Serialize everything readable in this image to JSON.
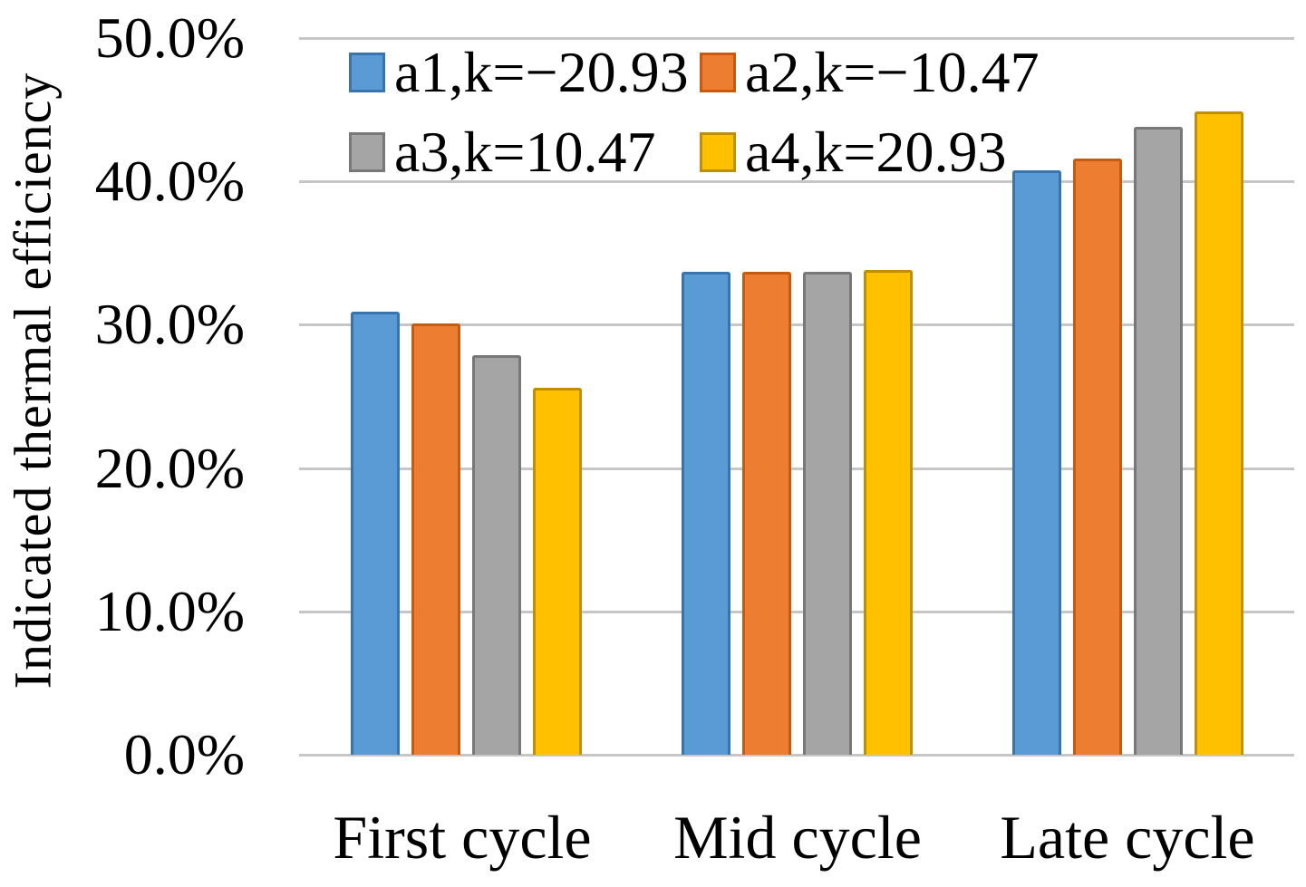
{
  "chart_data": {
    "type": "bar",
    "title": "",
    "xlabel": "",
    "ylabel": "Indicated thermal efficiency",
    "categories": [
      "First cycle",
      "Mid cycle",
      "Late cycle"
    ],
    "series": [
      {
        "name": "a1,k=−20.93",
        "color": "#5B9BD5",
        "border_color": "#3A74AC",
        "values": [
          30.9,
          33.7,
          40.8
        ]
      },
      {
        "name": "a2,k=−10.47",
        "color": "#ED7D31",
        "border_color": "#C55A11",
        "values": [
          30.1,
          33.7,
          41.6
        ]
      },
      {
        "name": "a3,k=10.47",
        "color": "#A5A5A5",
        "border_color": "#787878",
        "values": [
          27.9,
          33.7,
          43.8
        ]
      },
      {
        "name": "a4,k=20.93",
        "color": "#FFC000",
        "border_color": "#BF8F00",
        "values": [
          25.6,
          33.8,
          44.9
        ]
      }
    ],
    "y_axis": {
      "min": 0,
      "max": 50,
      "tick_step": 10,
      "tick_labels": [
        "50.0%",
        "40.0%",
        "30.0%",
        "20.0%",
        "10.0%",
        "0.0%"
      ],
      "format": "percent"
    },
    "grid": true,
    "gridline_color": "#C6C6C6",
    "legend_position": "top-inside",
    "legend_rows": 2,
    "legend_columns": 2
  }
}
